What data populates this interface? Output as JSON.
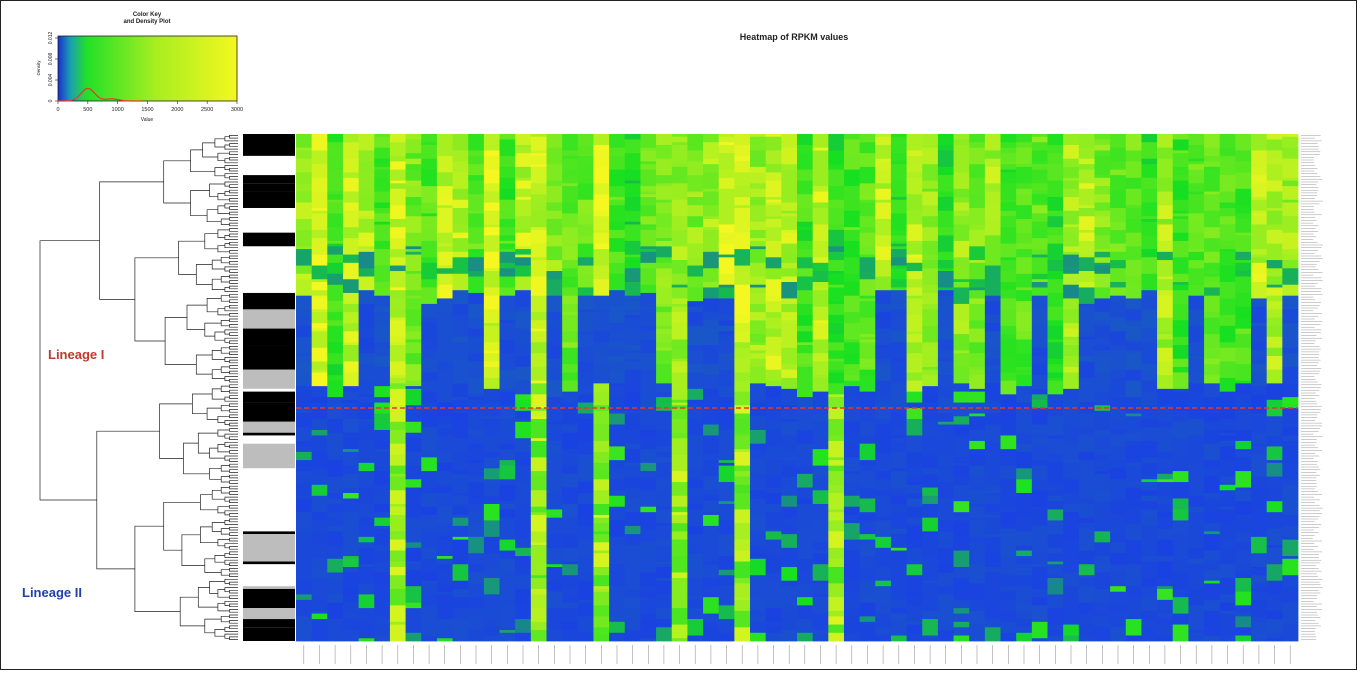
{
  "figure": {
    "title": "Heatmap of RPKM values",
    "lineage_labels": [
      {
        "text": "Lineage I",
        "color": "#c0392b"
      },
      {
        "text": "Lineage II",
        "color": "#1f3fb0"
      }
    ],
    "divider_color": "#e53a2b"
  },
  "color_key": {
    "title_line1": "Color Key",
    "title_line2": "and Density Plot",
    "xlabel": "Value",
    "ylabel": "Density",
    "x_ticks": [
      "0",
      "500",
      "1000",
      "1500",
      "2000",
      "2500",
      "3000"
    ],
    "y_ticks": [
      "0",
      "0.004",
      "0.008",
      "0.012"
    ],
    "density_curve_color": "#e53a2b"
  },
  "chart_data": {
    "type": "heatmap",
    "title": "Heatmap of RPKM values",
    "value_range": [
      0,
      3000
    ],
    "colors": {
      "low": "#1a3ee6",
      "mid": "#16e020",
      "high": "#f4f720"
    },
    "rows": 185,
    "columns": 64,
    "row_groups": [
      {
        "name": "Lineage I",
        "rows": [
          0,
          90
        ]
      },
      {
        "name": "Lineage II",
        "rows": [
          91,
          184
        ]
      }
    ],
    "density_peak_value": 500
  }
}
